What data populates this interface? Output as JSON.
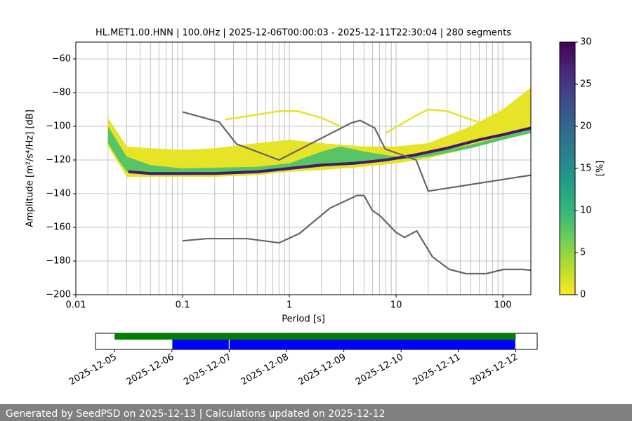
{
  "chart_data": {
    "type": "ppsd",
    "title": "HL.MET1.00.HNN | 100.0Hz | 2025-12-06T00:00:03 - 2025-12-11T22:30:04 | 280 segments",
    "x_label": "Period [s]",
    "y_label": "Amplitude [m²/s⁴/Hz] [dB]",
    "log_x": true,
    "grid": true,
    "xlim": [
      0.01,
      183
    ],
    "xticks": [
      0.01,
      0.1,
      1,
      10,
      100
    ],
    "ylim": [
      -200,
      -50
    ],
    "yticks": [
      {
        "value": -200,
        "label": "−200"
      },
      {
        "value": -180,
        "label": "−180"
      },
      {
        "value": -160,
        "label": "−160"
      },
      {
        "value": -140,
        "label": "−140"
      },
      {
        "value": -120,
        "label": "−120"
      },
      {
        "value": -100,
        "label": "−100"
      },
      {
        "value": -80,
        "label": "−80"
      },
      {
        "value": -60,
        "label": "−60"
      }
    ],
    "density": [
      {
        "percent": 1,
        "x": [
          0.02,
          0.03,
          0.05,
          0.1,
          0.2,
          0.5,
          1,
          2,
          5,
          10,
          20,
          50,
          100,
          183
        ],
        "high": [
          -95,
          -112,
          -113,
          -114,
          -113,
          -110,
          -108,
          -110,
          -112,
          -112,
          -110,
          -100,
          -90,
          -77
        ],
        "low": [
          -112,
          -130,
          -130,
          -130,
          -130,
          -129,
          -127,
          -126,
          -124,
          -122,
          -119,
          -113,
          -108,
          -104
        ]
      },
      {
        "percent": 8,
        "x": [
          0.02,
          0.025,
          0.03,
          0.05,
          0.1,
          0.5,
          1,
          2,
          3,
          5,
          10,
          20,
          50,
          100,
          183
        ],
        "high": [
          -100,
          -110,
          -118,
          -123,
          -125,
          -124,
          -122,
          -115,
          -112,
          -115,
          -118,
          -116,
          -111,
          -106,
          -102
        ],
        "low": [
          -110,
          -120,
          -127,
          -129,
          -129,
          -128,
          -126,
          -124,
          -123,
          -122,
          -120,
          -118,
          -113,
          -108,
          -104
        ]
      }
    ],
    "traces": [
      {
        "percent": 1,
        "x": [
          0.25,
          0.4,
          0.8,
          1.2,
          2,
          3
        ],
        "y": [
          -96,
          -94,
          -91,
          -91,
          -95,
          -100
        ]
      },
      {
        "percent": 1,
        "x": [
          8,
          15,
          20,
          30,
          50,
          80,
          150,
          183
        ],
        "y": [
          -104,
          -94,
          -90,
          -91,
          -96,
          -100,
          -96,
          -95
        ]
      },
      {
        "percent": 28,
        "x": [
          0.031,
          0.05,
          0.1,
          0.2,
          0.5,
          1,
          2,
          4,
          8,
          15,
          30,
          60,
          100,
          183
        ],
        "y": [
          -127,
          -128,
          -128,
          -128,
          -127,
          -125,
          -123,
          -122,
          -120,
          -117,
          -113,
          -108,
          -105,
          -101
        ]
      }
    ],
    "noise_models": [
      {
        "color": "#666666",
        "x": [
          0.1,
          0.22,
          0.32,
          0.8,
          3.8,
          4.6,
          6.3,
          7.9,
          15.4,
          20,
          183
        ],
        "y": [
          -91.5,
          -97.4,
          -110.5,
          -120,
          -98,
          -96.5,
          -101,
          -113.5,
          -120,
          -138.5,
          -129
        ]
      },
      {
        "color": "#666666",
        "x": [
          0.1,
          0.17,
          0.4,
          0.8,
          1.24,
          2.4,
          4.3,
          5.0,
          6.0,
          7.1,
          10,
          12,
          15.6,
          21.9,
          31.6,
          45,
          70,
          101,
          154,
          183
        ],
        "y": [
          -168,
          -166.7,
          -166.7,
          -169.2,
          -163.7,
          -148.6,
          -141.1,
          -141.1,
          -150,
          -153.2,
          -163,
          -166,
          -162.1,
          -177.5,
          -185,
          -187.5,
          -187.5,
          -185,
          -185,
          -185.5
        ]
      }
    ],
    "colorbar": {
      "label": "[%]",
      "lim": [
        0,
        30
      ],
      "ticks": [
        0,
        5,
        10,
        15,
        20,
        25,
        30
      ],
      "colormap": "viridis_r"
    },
    "timeline": {
      "xlim": [
        "2025-12-04T16:00:00Z",
        "2025-12-12T09:00:00Z"
      ],
      "xticks": [
        "2025-12-05",
        "2025-12-06",
        "2025-12-07",
        "2025-12-08",
        "2025-12-09",
        "2025-12-10",
        "2025-12-11",
        "2025-12-12"
      ],
      "bars": [
        {
          "row": 0,
          "color": "#008000",
          "start": "2025-12-05",
          "end": "2025-12-12"
        },
        {
          "row": 1,
          "color": "#0000ff",
          "start": "2025-12-06",
          "end": "2025-12-07"
        },
        {
          "row": 1,
          "color": "#0000ff",
          "start": "2025-12-07",
          "end": "2025-12-12"
        }
      ]
    },
    "footer": "Generated by SeedPSD on 2025-12-13 | Calculations updated on 2025-12-12"
  }
}
